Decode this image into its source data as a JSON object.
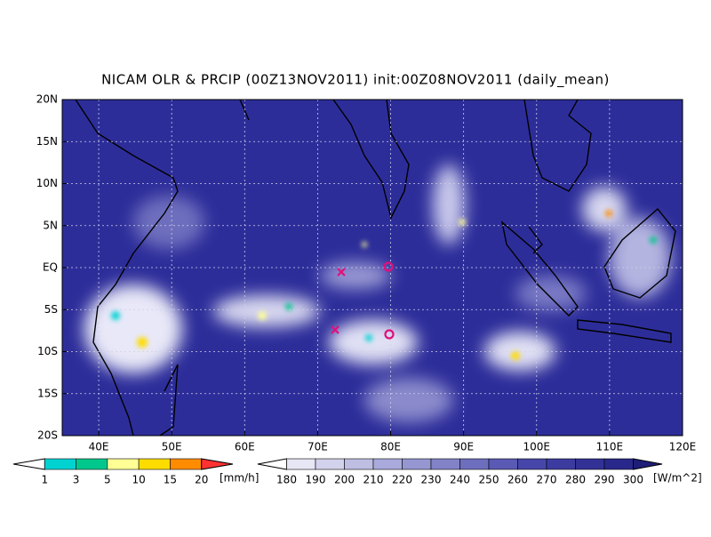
{
  "title": "NICAM OLR & PRCIP (00Z13NOV2011) init:00Z08NOV2011 (daily_mean)",
  "lat_labels": [
    "20N",
    "15N",
    "10N",
    "5N",
    "EQ",
    "5S",
    "10S",
    "15S",
    "20S"
  ],
  "lon_labels": [
    "40E",
    "50E",
    "60E",
    "70E",
    "80E",
    "90E",
    "100E",
    "110E",
    "120E"
  ],
  "precip_colorbar": {
    "labels": [
      1,
      3,
      5,
      10,
      15,
      20
    ],
    "unit": "[mm/h]",
    "colors": [
      "#ffffff",
      "#00d2d2",
      "#00c88c",
      "#ffff96",
      "#ffdc00",
      "#ff8c00",
      "#ff3232"
    ]
  },
  "olr_colorbar": {
    "labels": [
      180,
      190,
      200,
      210,
      220,
      230,
      240,
      250,
      260,
      270,
      280,
      290,
      300
    ],
    "unit": "[W/m^2]",
    "colors": [
      "#ffffff",
      "#e6e6f5",
      "#d2d2ec",
      "#bebee3",
      "#aaaadc",
      "#9696d2",
      "#8282c8",
      "#6e6ebe",
      "#5a5ab4",
      "#4646aa",
      "#3c3ca0",
      "#323296",
      "#28288c",
      "#1e1e78"
    ]
  }
}
